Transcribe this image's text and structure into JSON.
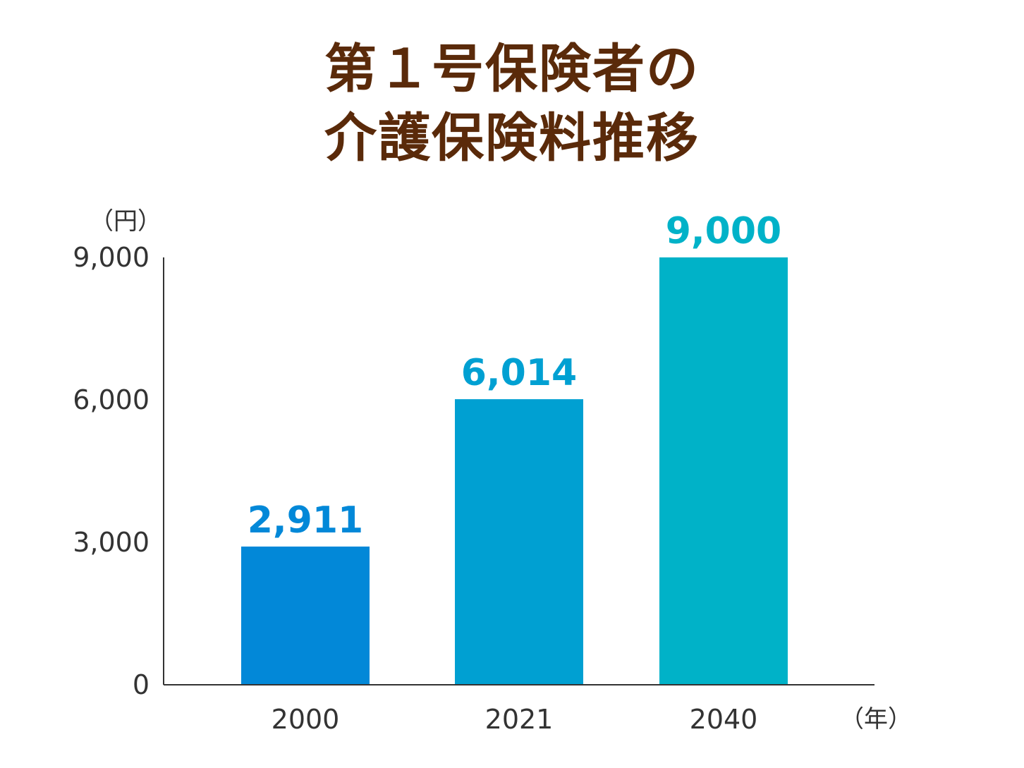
{
  "title": {
    "line1": "第１号保険者の",
    "line2": "介護保険料推移"
  },
  "chart_data": {
    "type": "bar",
    "categories": [
      "2000",
      "2021",
      "2040"
    ],
    "values": [
      2911,
      6014,
      9000
    ],
    "value_labels": [
      "2,911",
      "6,014",
      "9,000"
    ],
    "bar_colors": [
      "#0288d8",
      "#00a0d2",
      "#00b2c8"
    ],
    "label_colors": [
      "#0288d8",
      "#00a0d2",
      "#00b2c8"
    ],
    "ylim": [
      0,
      9000
    ],
    "yticks": [
      0,
      3000,
      6000,
      9000
    ],
    "ytick_labels": [
      "0",
      "3,000",
      "6,000",
      "9,000"
    ],
    "y_unit": "（円）",
    "x_unit": "（年）",
    "grid": false,
    "axis_color": "#333333"
  }
}
